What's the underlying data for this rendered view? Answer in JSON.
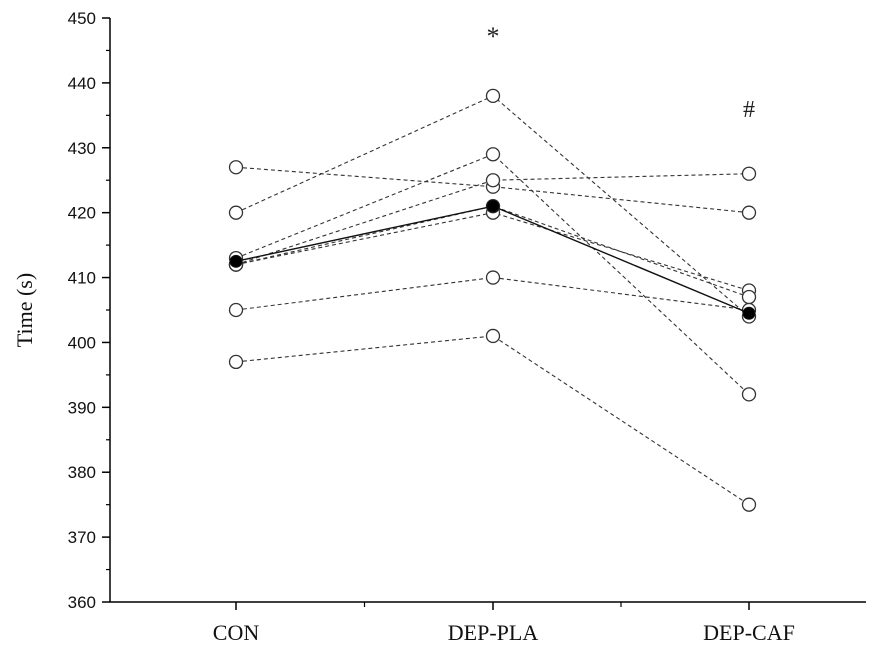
{
  "chart_data": {
    "type": "line",
    "categories": [
      "CON",
      "DEP-PLA",
      "DEP-CAF"
    ],
    "ylabel": "Time (s)",
    "xlabel": "",
    "ylim": [
      360,
      450
    ],
    "yticks": [
      360,
      370,
      380,
      390,
      400,
      410,
      420,
      430,
      440,
      450
    ],
    "grid": false,
    "individuals": [
      {
        "values": [
          427,
          424,
          420
        ]
      },
      {
        "values": [
          420,
          438,
          404
        ]
      },
      {
        "values": [
          413,
          429,
          392
        ]
      },
      {
        "values": [
          412,
          420,
          408
        ]
      },
      {
        "values": [
          412,
          425,
          426
        ]
      },
      {
        "values": [
          412,
          421,
          407
        ]
      },
      {
        "values": [
          405,
          410,
          405
        ]
      },
      {
        "values": [
          397,
          401,
          375
        ]
      }
    ],
    "mean": {
      "values": [
        412.5,
        421,
        404.5
      ]
    },
    "annotations": [
      {
        "category": "DEP-PLA",
        "text": "*",
        "y": 448
      },
      {
        "category": "DEP-CAF",
        "text": "#",
        "y": 436
      }
    ],
    "style": {
      "individual_color": "#333333",
      "mean_color": "#111111",
      "marker_fill_individual": "#ffffff",
      "marker_fill_mean": "#000000"
    }
  }
}
